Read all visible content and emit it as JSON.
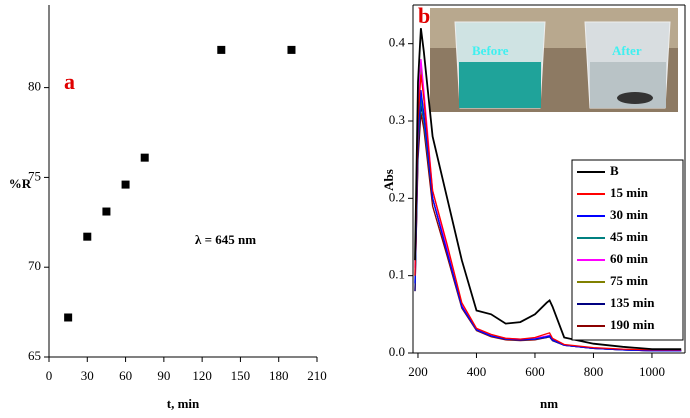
{
  "chart_data": [
    {
      "type": "scatter",
      "x_label": "t, min",
      "y_label": "%R",
      "annotations": [
        "a",
        "λ = 645 nm"
      ],
      "series": [
        {
          "name": null,
          "color": "#000000",
          "x": [
            15,
            30,
            45,
            60,
            75,
            135,
            190
          ],
          "values": [
            67.2,
            71.7,
            73.1,
            74.6,
            76.1,
            82.1,
            82.1
          ]
        }
      ],
      "xlim": [
        0,
        210
      ],
      "xticks": [
        0,
        30,
        60,
        90,
        120,
        150,
        180,
        210
      ],
      "ylim": [
        65,
        84.6
      ],
      "yticks": [
        65,
        70,
        75,
        80
      ]
    },
    {
      "type": "line",
      "x_label": "nm",
      "y_label": "Abs",
      "annotations": [
        "b",
        "Before",
        "After"
      ],
      "x": [
        190,
        200,
        210,
        220,
        250,
        300,
        350,
        400,
        450,
        500,
        550,
        600,
        640,
        650,
        660,
        700,
        800,
        900,
        1000,
        1100
      ],
      "series": [
        {
          "name": "B",
          "color": "#000000",
          "values": [
            0.12,
            0.35,
            0.42,
            0.39,
            0.28,
            0.2,
            0.12,
            0.055,
            0.05,
            0.038,
            0.04,
            0.05,
            0.065,
            0.068,
            0.06,
            0.02,
            0.012,
            0.008,
            0.005,
            0.005
          ]
        },
        {
          "name": "15 min",
          "color": "#ff0000",
          "values": [
            0.1,
            0.3,
            0.36,
            0.33,
            0.21,
            0.14,
            0.065,
            0.032,
            0.024,
            0.019,
            0.018,
            0.02,
            0.025,
            0.026,
            0.019,
            0.011,
            0.007,
            0.005,
            0.004,
            0.004
          ]
        },
        {
          "name": "30 min",
          "color": "#0000ff",
          "values": [
            0.09,
            0.28,
            0.34,
            0.31,
            0.2,
            0.13,
            0.06,
            0.03,
            0.022,
            0.018,
            0.017,
            0.018,
            0.021,
            0.022,
            0.017,
            0.01,
            0.006,
            0.004,
            0.003,
            0.003
          ]
        },
        {
          "name": "45 min",
          "color": "#008080",
          "values": [
            0.09,
            0.27,
            0.33,
            0.3,
            0.2,
            0.13,
            0.06,
            0.03,
            0.022,
            0.018,
            0.017,
            0.018,
            0.021,
            0.022,
            0.017,
            0.01,
            0.006,
            0.004,
            0.003,
            0.003
          ]
        },
        {
          "name": "60 min",
          "color": "#ff00ff",
          "values": [
            0.11,
            0.32,
            0.38,
            0.34,
            0.21,
            0.135,
            0.062,
            0.031,
            0.023,
            0.019,
            0.018,
            0.019,
            0.022,
            0.023,
            0.018,
            0.01,
            0.006,
            0.004,
            0.003,
            0.003
          ]
        },
        {
          "name": "75 min",
          "color": "#808000",
          "values": [
            0.1,
            0.31,
            0.37,
            0.33,
            0.2,
            0.13,
            0.06,
            0.03,
            0.022,
            0.018,
            0.017,
            0.018,
            0.021,
            0.022,
            0.017,
            0.01,
            0.006,
            0.004,
            0.003,
            0.003
          ]
        },
        {
          "name": "135 min",
          "color": "#000080",
          "values": [
            0.08,
            0.26,
            0.32,
            0.3,
            0.2,
            0.13,
            0.06,
            0.03,
            0.022,
            0.018,
            0.017,
            0.018,
            0.02,
            0.021,
            0.016,
            0.01,
            0.006,
            0.004,
            0.003,
            0.003
          ]
        },
        {
          "name": "190 min",
          "color": "#8b0000",
          "values": [
            0.08,
            0.25,
            0.31,
            0.29,
            0.19,
            0.125,
            0.058,
            0.029,
            0.021,
            0.017,
            0.016,
            0.017,
            0.02,
            0.021,
            0.016,
            0.01,
            0.006,
            0.004,
            0.003,
            0.003
          ]
        }
      ],
      "xlim": [
        183,
        1113
      ],
      "xticks": [
        200,
        400,
        600,
        800,
        1000
      ],
      "ylim": [
        0,
        0.45
      ],
      "yticks": [
        {
          "value": 0,
          "label": "0.0"
        },
        0.1,
        0.2,
        0.3,
        0.4
      ]
    }
  ]
}
